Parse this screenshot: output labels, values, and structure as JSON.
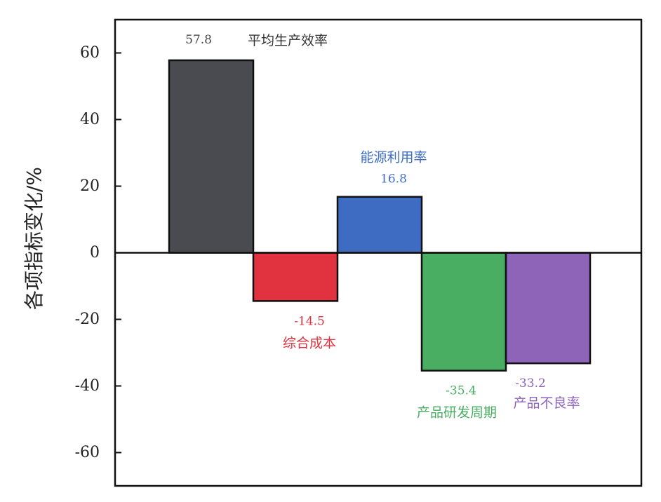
{
  "chart_data": {
    "type": "bar",
    "title": "",
    "xlabel": "",
    "ylabel": "各项指标变化/%",
    "ylim": [
      -70,
      70
    ],
    "yticks": [
      60,
      40,
      20,
      0,
      -20,
      -40,
      -60
    ],
    "yticks_labels": [
      "60",
      "40",
      "20",
      "0",
      "-20",
      "-40",
      "-60"
    ],
    "grid": false,
    "legend": "none",
    "categories": [
      "平均生产效率",
      "综合成本",
      "能源利用率",
      "产品研发周期",
      "产品不良率"
    ],
    "values": [
      57.8,
      -14.5,
      16.8,
      -35.4,
      -33.2
    ],
    "value_labels": [
      "57.8",
      "-14.5",
      "16.8",
      "-35.4",
      "-33.2"
    ],
    "colors": [
      "#4a4b50",
      "#e0323f",
      "#3d6cc2",
      "#4aae62",
      "#8d64b8"
    ],
    "label_colors": [
      "#333333",
      "#e0323f",
      "#3d6cc2",
      "#4aae62",
      "#8d64b8"
    ],
    "value_label_colors": [
      "#444444",
      "#e0323f",
      "#3d6cc2",
      "#4aae62",
      "#8d64b8"
    ]
  }
}
